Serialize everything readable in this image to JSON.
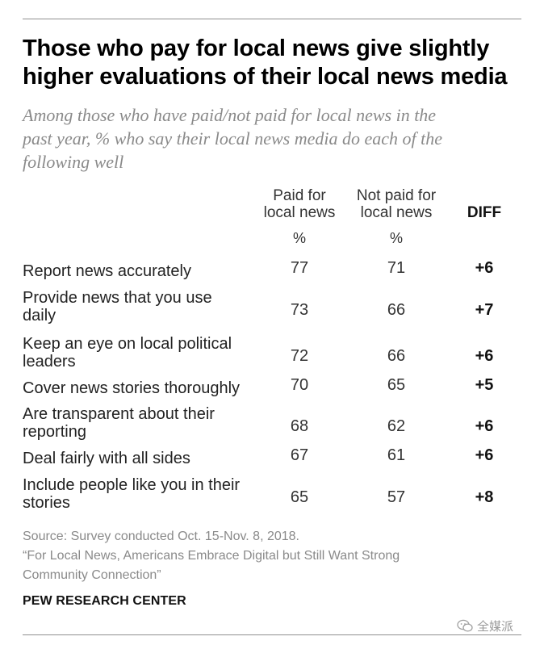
{
  "header": {
    "title_line1": "Those who pay for local news give slightly",
    "title_line2": "higher evaluations of their local news media",
    "subtitle_line1": "Among those who have paid/not paid for local news in the",
    "subtitle_line2": "past year, % who say their local news media do each of the",
    "subtitle_line3": "following well"
  },
  "columns": {
    "paid": [
      "Paid for",
      "local news"
    ],
    "not_paid": [
      "Not paid for",
      "local news"
    ],
    "diff": "DIFF",
    "unit": "%"
  },
  "chart_data": {
    "type": "table",
    "title": "Those who pay for local news give slightly higher evaluations of their local news media",
    "columns": [
      "Paid for local news",
      "Not paid for local news",
      "DIFF"
    ],
    "unit": "%",
    "rows": [
      {
        "label": "Report news accurately",
        "paid": 77,
        "not_paid": 71,
        "diff": "+6"
      },
      {
        "label": "Provide news that you use daily",
        "paid": 73,
        "not_paid": 66,
        "diff": "+7"
      },
      {
        "label": "Keep an eye on local political leaders",
        "paid": 72,
        "not_paid": 66,
        "diff": "+6"
      },
      {
        "label": "Cover news stories thoroughly",
        "paid": 70,
        "not_paid": 65,
        "diff": "+5"
      },
      {
        "label": "Are transparent about their reporting",
        "paid": 68,
        "not_paid": 62,
        "diff": "+6"
      },
      {
        "label": "Deal fairly with all sides",
        "paid": 67,
        "not_paid": 61,
        "diff": "+6"
      },
      {
        "label": "Include people like you in their stories",
        "paid": 65,
        "not_paid": 57,
        "diff": "+8"
      }
    ]
  },
  "rows_display": [
    {
      "lines": [
        "Report news accurately"
      ]
    },
    {
      "lines": [
        "Provide news that you use",
        "daily"
      ]
    },
    {
      "lines": [
        "Keep an eye on local political",
        "leaders"
      ]
    },
    {
      "lines": [
        "Cover news stories thoroughly"
      ]
    },
    {
      "lines": [
        "Are transparent about their",
        "reporting"
      ]
    },
    {
      "lines": [
        "Deal fairly with all sides"
      ]
    },
    {
      "lines": [
        "Include people like you in their",
        "stories"
      ]
    }
  ],
  "footer": {
    "source_line1": "Source: Survey conducted Oct. 15-Nov. 8, 2018.",
    "source_line2": "“For Local News, Americans Embrace Digital but Still Want Strong",
    "source_line3": "Community Connection”",
    "brand": "PEW RESEARCH CENTER",
    "watermark": "全媒派",
    "watermark_icon": "wechat-icon"
  }
}
